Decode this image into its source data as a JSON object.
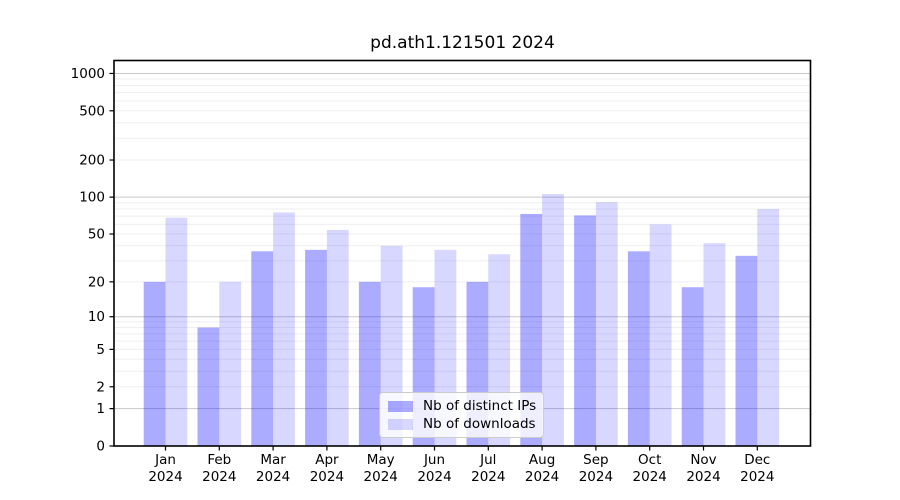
{
  "chart_data": {
    "type": "bar",
    "title": "pd.ath1.121501 2024",
    "months": [
      "Jan",
      "Feb",
      "Mar",
      "Apr",
      "May",
      "Jun",
      "Jul",
      "Aug",
      "Sep",
      "Oct",
      "Nov",
      "Dec"
    ],
    "year_label": "2024",
    "series": [
      {
        "name": "Nb of distinct IPs",
        "color": "rgba(0,0,255,0.33)",
        "values": [
          20,
          8,
          36,
          37,
          20,
          18,
          20,
          73,
          71,
          36,
          18,
          33
        ]
      },
      {
        "name": "Nb of downloads",
        "color": "rgba(0,0,255,0.155)",
        "values": [
          68,
          20,
          75,
          54,
          40,
          37,
          34,
          106,
          91,
          60,
          42,
          80
        ]
      }
    ],
    "y_ticks": [
      0,
      1,
      2,
      5,
      10,
      20,
      50,
      100,
      200,
      500,
      1000
    ],
    "y_scale": "log1p",
    "ylim": [
      0,
      1272
    ],
    "grid": {
      "major_at": [
        1,
        10,
        100,
        1000
      ],
      "minor_mantissas": [
        2,
        3,
        4,
        5,
        6,
        7,
        8,
        9
      ],
      "major_color": "#c9c9c9",
      "minor_color": "#efefef"
    },
    "axis_color": "#000000",
    "legend_position": "lower-center"
  }
}
